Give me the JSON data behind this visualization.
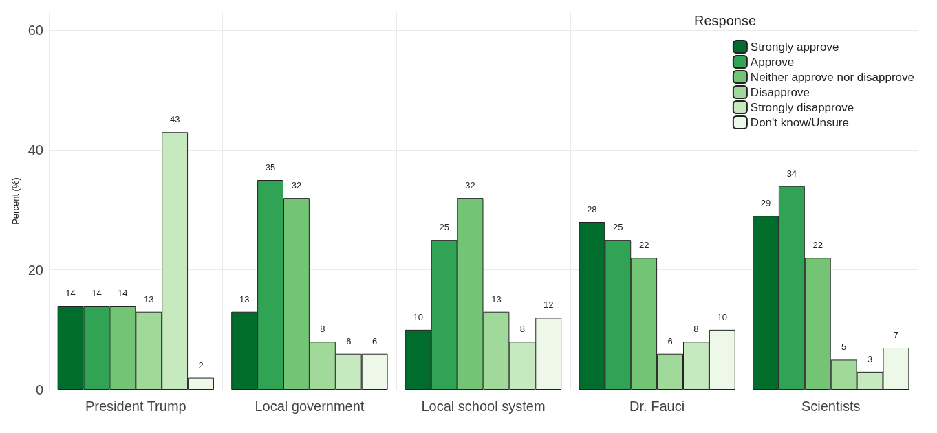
{
  "chart_data": {
    "type": "bar",
    "ylabel": "Percent (%)",
    "legend_title": "Response",
    "legend": "top right",
    "grid": true,
    "data_labels": true,
    "categories": [
      "President Trump",
      "Local government",
      "Local school system",
      "Dr. Fauci",
      "Scientists"
    ],
    "ylim": [
      0,
      63
    ],
    "yticks": [
      0,
      20,
      40,
      60
    ],
    "series": [
      {
        "name": "Strongly approve",
        "color": "#006d2c",
        "values": [
          14,
          13,
          10,
          28,
          29
        ]
      },
      {
        "name": "Approve",
        "color": "#31a354",
        "values": [
          14,
          35,
          25,
          25,
          34
        ]
      },
      {
        "name": "Neither approve nor disapprove",
        "color": "#74c476",
        "values": [
          14,
          32,
          32,
          22,
          22
        ]
      },
      {
        "name": "Disapprove",
        "color": "#a1d99b",
        "values": [
          13,
          8,
          13,
          6,
          5
        ]
      },
      {
        "name": "Strongly disapprove",
        "color": "#c7e9c0",
        "values": [
          43,
          6,
          8,
          8,
          3
        ]
      },
      {
        "name": "Don't know/Unsure",
        "color": "#edf8e9",
        "values": [
          2,
          6,
          12,
          10,
          7
        ]
      }
    ]
  }
}
